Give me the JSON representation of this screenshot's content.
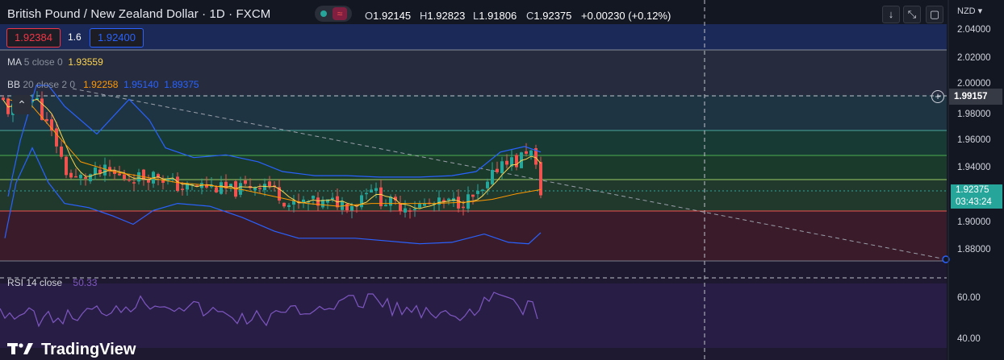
{
  "header": {
    "symbol_title": "British Pound / New Zealand Dollar · 1D · FXCM",
    "wave_icon": "≈",
    "ohlc": {
      "open_label": "O",
      "open": "1.92145",
      "high_label": "H",
      "high": "1.92823",
      "low_label": "L",
      "low": "1.91806",
      "close_label": "C",
      "close": "1.92375",
      "change": "+0.00230 (+0.12%)"
    }
  },
  "toolbar": {
    "download_icon": "↓",
    "fullscreen_icon": "⤡",
    "screenshot_icon": "▢"
  },
  "trade": {
    "sell": "1.92384",
    "spread": "1.6",
    "buy": "1.92400"
  },
  "indicators": {
    "ma": {
      "label": "MA",
      "params": "5 close 0",
      "value": "1.93559"
    },
    "bb": {
      "label": "BB",
      "params": "20 close 2 0",
      "basis": "1.92258",
      "upper": "1.95140",
      "lower": "1.89375"
    }
  },
  "price_axis": {
    "currency": "NZD",
    "ticks": [
      "2.04000",
      "2.02000",
      "2.00000",
      "1.98000",
      "1.96000",
      "1.94000",
      "1.90000",
      "1.88000"
    ],
    "crosshair_price": "1.99157",
    "last_price": "1.92375",
    "countdown": "03:43:24"
  },
  "rsi": {
    "label": "RSI",
    "params": "14 close",
    "value": "50.33",
    "ticks": [
      "60.00",
      "40.00"
    ]
  },
  "brand": {
    "name": "TradingView"
  },
  "colors": {
    "up": "#26a69a",
    "down": "#ef5350",
    "ma": "#ffd54f",
    "bb_basis": "#ff9800",
    "bb_band": "#2962ff",
    "rsi": "#7e57c2"
  }
}
